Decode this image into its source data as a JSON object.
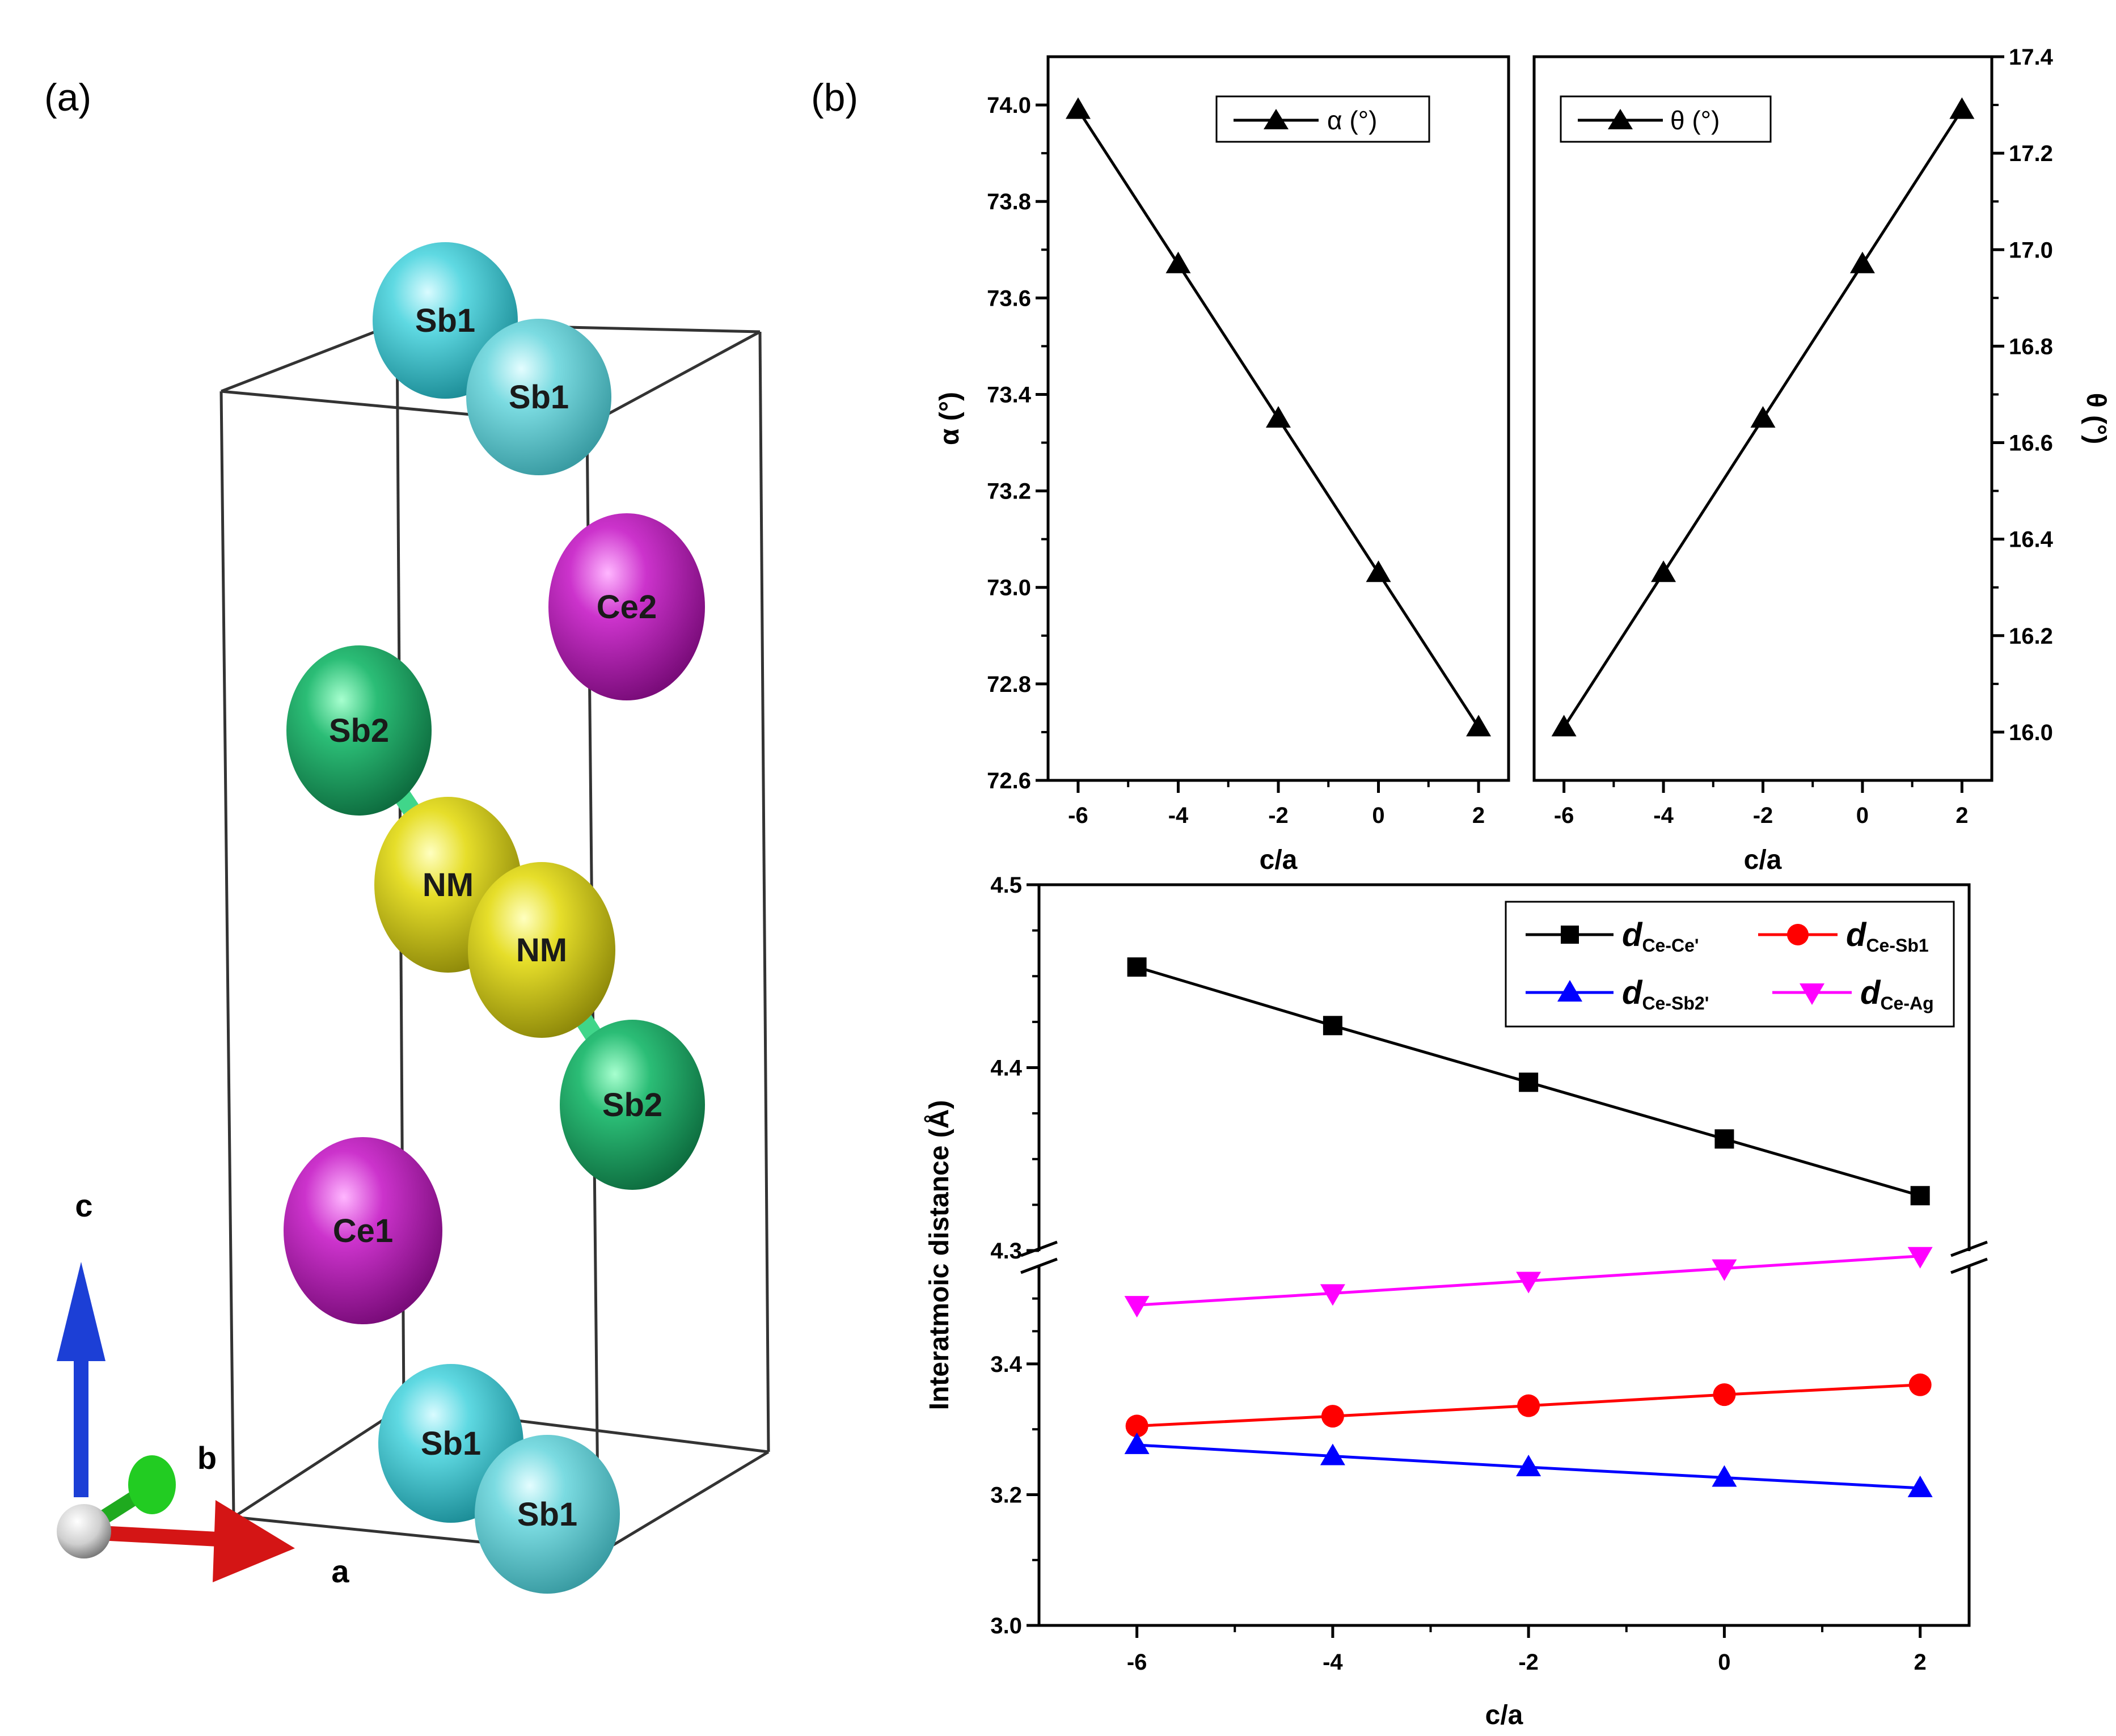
{
  "panels": {
    "a_label": "(a)",
    "b_label": "(b)"
  },
  "structure": {
    "atoms": [
      {
        "id": "sb1-top-back",
        "label": "Sb1",
        "color": "#33c8d2"
      },
      {
        "id": "sb1-top-front",
        "label": "Sb1",
        "color": "#4fcad4"
      },
      {
        "id": "ce2",
        "label": "Ce2",
        "color": "#b719b7"
      },
      {
        "id": "sb2-top",
        "label": "Sb2",
        "color": "#1fa867"
      },
      {
        "id": "nm-back",
        "label": "NM",
        "color": "#d9d21a"
      },
      {
        "id": "nm-front",
        "label": "NM",
        "color": "#d9d21a"
      },
      {
        "id": "sb2-bottom",
        "label": "Sb2",
        "color": "#1fa867"
      },
      {
        "id": "ce1",
        "label": "Ce1",
        "color": "#b719b7"
      },
      {
        "id": "sb1-bot-back",
        "label": "Sb1",
        "color": "#33c8d2"
      },
      {
        "id": "sb1-bot-front",
        "label": "Sb1",
        "color": "#4fcad4"
      }
    ],
    "axes": {
      "c": "c",
      "b": "b",
      "a": "a"
    }
  },
  "chart_data": [
    {
      "type": "line",
      "id": "alpha",
      "x": [
        -6,
        -4,
        -2,
        0,
        2
      ],
      "xlim": [
        -6.6,
        2.6
      ],
      "xticks": [
        -6,
        -4,
        -2,
        0,
        2
      ],
      "ylim": [
        72.6,
        74.1
      ],
      "yticks": [
        72.6,
        72.8,
        73.0,
        73.2,
        73.4,
        73.6,
        73.8,
        74.0
      ],
      "xlabel": "c/a",
      "ylabel": "α (°)",
      "legend_placement": "top-center",
      "series": [
        {
          "name": "α (°)",
          "values": [
            73.99,
            73.67,
            73.35,
            73.03,
            72.71
          ],
          "color": "#000000",
          "marker": "triangle-up"
        }
      ]
    },
    {
      "type": "line",
      "id": "theta",
      "x": [
        -6,
        -4,
        -2,
        0,
        2
      ],
      "xlim": [
        -6.6,
        2.6
      ],
      "xticks": [
        -6,
        -4,
        -2,
        0,
        2
      ],
      "ylim": [
        15.9,
        17.4
      ],
      "yticks": [
        16.0,
        16.2,
        16.4,
        16.6,
        16.8,
        17.0,
        17.2,
        17.4
      ],
      "xlabel": "c/a",
      "ylabel": "θ (°)",
      "legend_placement": "top-center",
      "series": [
        {
          "name": "θ (°)",
          "values": [
            16.01,
            16.33,
            16.65,
            16.97,
            17.29
          ],
          "color": "#000000",
          "marker": "triangle-up"
        }
      ]
    },
    {
      "type": "line",
      "id": "distance",
      "x": [
        -6,
        -4,
        -2,
        0,
        2
      ],
      "xlim": [
        -7,
        2.5
      ],
      "xticks": [
        -6,
        -4,
        -2,
        0,
        2
      ],
      "xlabel": "c/a",
      "ylabel": "Interatmoic distance (Å)",
      "broken_axis": true,
      "upper_range": [
        4.3,
        4.5
      ],
      "upper_ticks": [
        4.3,
        4.4,
        4.5
      ],
      "lower_range": [
        3.0,
        3.55
      ],
      "lower_ticks": [
        3.0,
        3.2,
        3.4
      ],
      "legend_placement": "top-right",
      "series": [
        {
          "name_main": "d",
          "name_sub": "Ce-Ce'",
          "values": [
            4.455,
            4.423,
            4.392,
            4.361,
            4.33
          ],
          "color": "#000000",
          "marker": "square",
          "segment": "upper"
        },
        {
          "name_main": "d",
          "name_sub": "Ce-Sb1",
          "values": [
            3.305,
            3.32,
            3.336,
            3.353,
            3.368
          ],
          "color": "#ff0000",
          "marker": "circle",
          "segment": "lower"
        },
        {
          "name_main": "d",
          "name_sub": "Ce-Sb2'",
          "values": [
            3.276,
            3.259,
            3.242,
            3.226,
            3.21
          ],
          "color": "#0000ff",
          "marker": "triangle-up",
          "segment": "lower"
        },
        {
          "name_main": "d",
          "name_sub": "Ce-Ag",
          "values": [
            3.49,
            3.508,
            3.527,
            3.546,
            3.565
          ],
          "color": "#ff00ff",
          "marker": "triangle-down",
          "segment": "lower"
        }
      ]
    }
  ]
}
